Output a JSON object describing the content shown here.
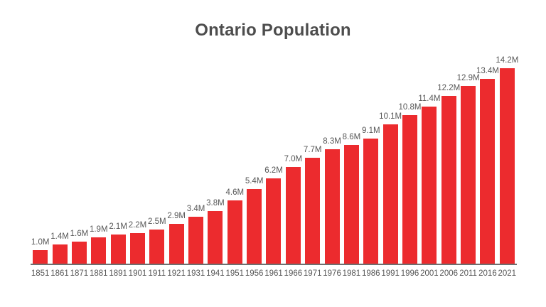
{
  "chart_data": {
    "type": "bar",
    "title": "Ontario Population",
    "xlabel": "",
    "ylabel": "",
    "ylim": [
      0,
      14.2
    ],
    "grid": "off",
    "legend": "none",
    "categories": [
      "1851",
      "1861",
      "1871",
      "1881",
      "1891",
      "1901",
      "1911",
      "1921",
      "1931",
      "1941",
      "1951",
      "1956",
      "1961",
      "1966",
      "1971",
      "1976",
      "1981",
      "1986",
      "1991",
      "1996",
      "2001",
      "2006",
      "2011",
      "2016",
      "2021"
    ],
    "values": [
      1.0,
      1.4,
      1.6,
      1.9,
      2.1,
      2.2,
      2.5,
      2.9,
      3.4,
      3.8,
      4.6,
      5.4,
      6.2,
      7.0,
      7.7,
      8.3,
      8.6,
      9.1,
      10.1,
      10.8,
      11.4,
      12.2,
      12.9,
      13.4,
      14.2
    ],
    "value_labels": [
      "1.0M",
      "1.4M",
      "1.6M",
      "1.9M",
      "2.1M",
      "2.2M",
      "2.5M",
      "2.9M",
      "3.4M",
      "3.8M",
      "4.6M",
      "5.4M",
      "6.2M",
      "7.0M",
      "7.7M",
      "8.3M",
      "8.6M",
      "9.1M",
      "10.1M",
      "10.8M",
      "11.4M",
      "12.2M",
      "12.9M",
      "13.4M",
      "14.2M"
    ],
    "colors": {
      "bar": "#ec2b2e",
      "value_label": "#575757",
      "tick_label": "#575757",
      "title": "#4d4d4d",
      "axis_line": "#6f6f6f",
      "background": "#ffffff"
    }
  }
}
